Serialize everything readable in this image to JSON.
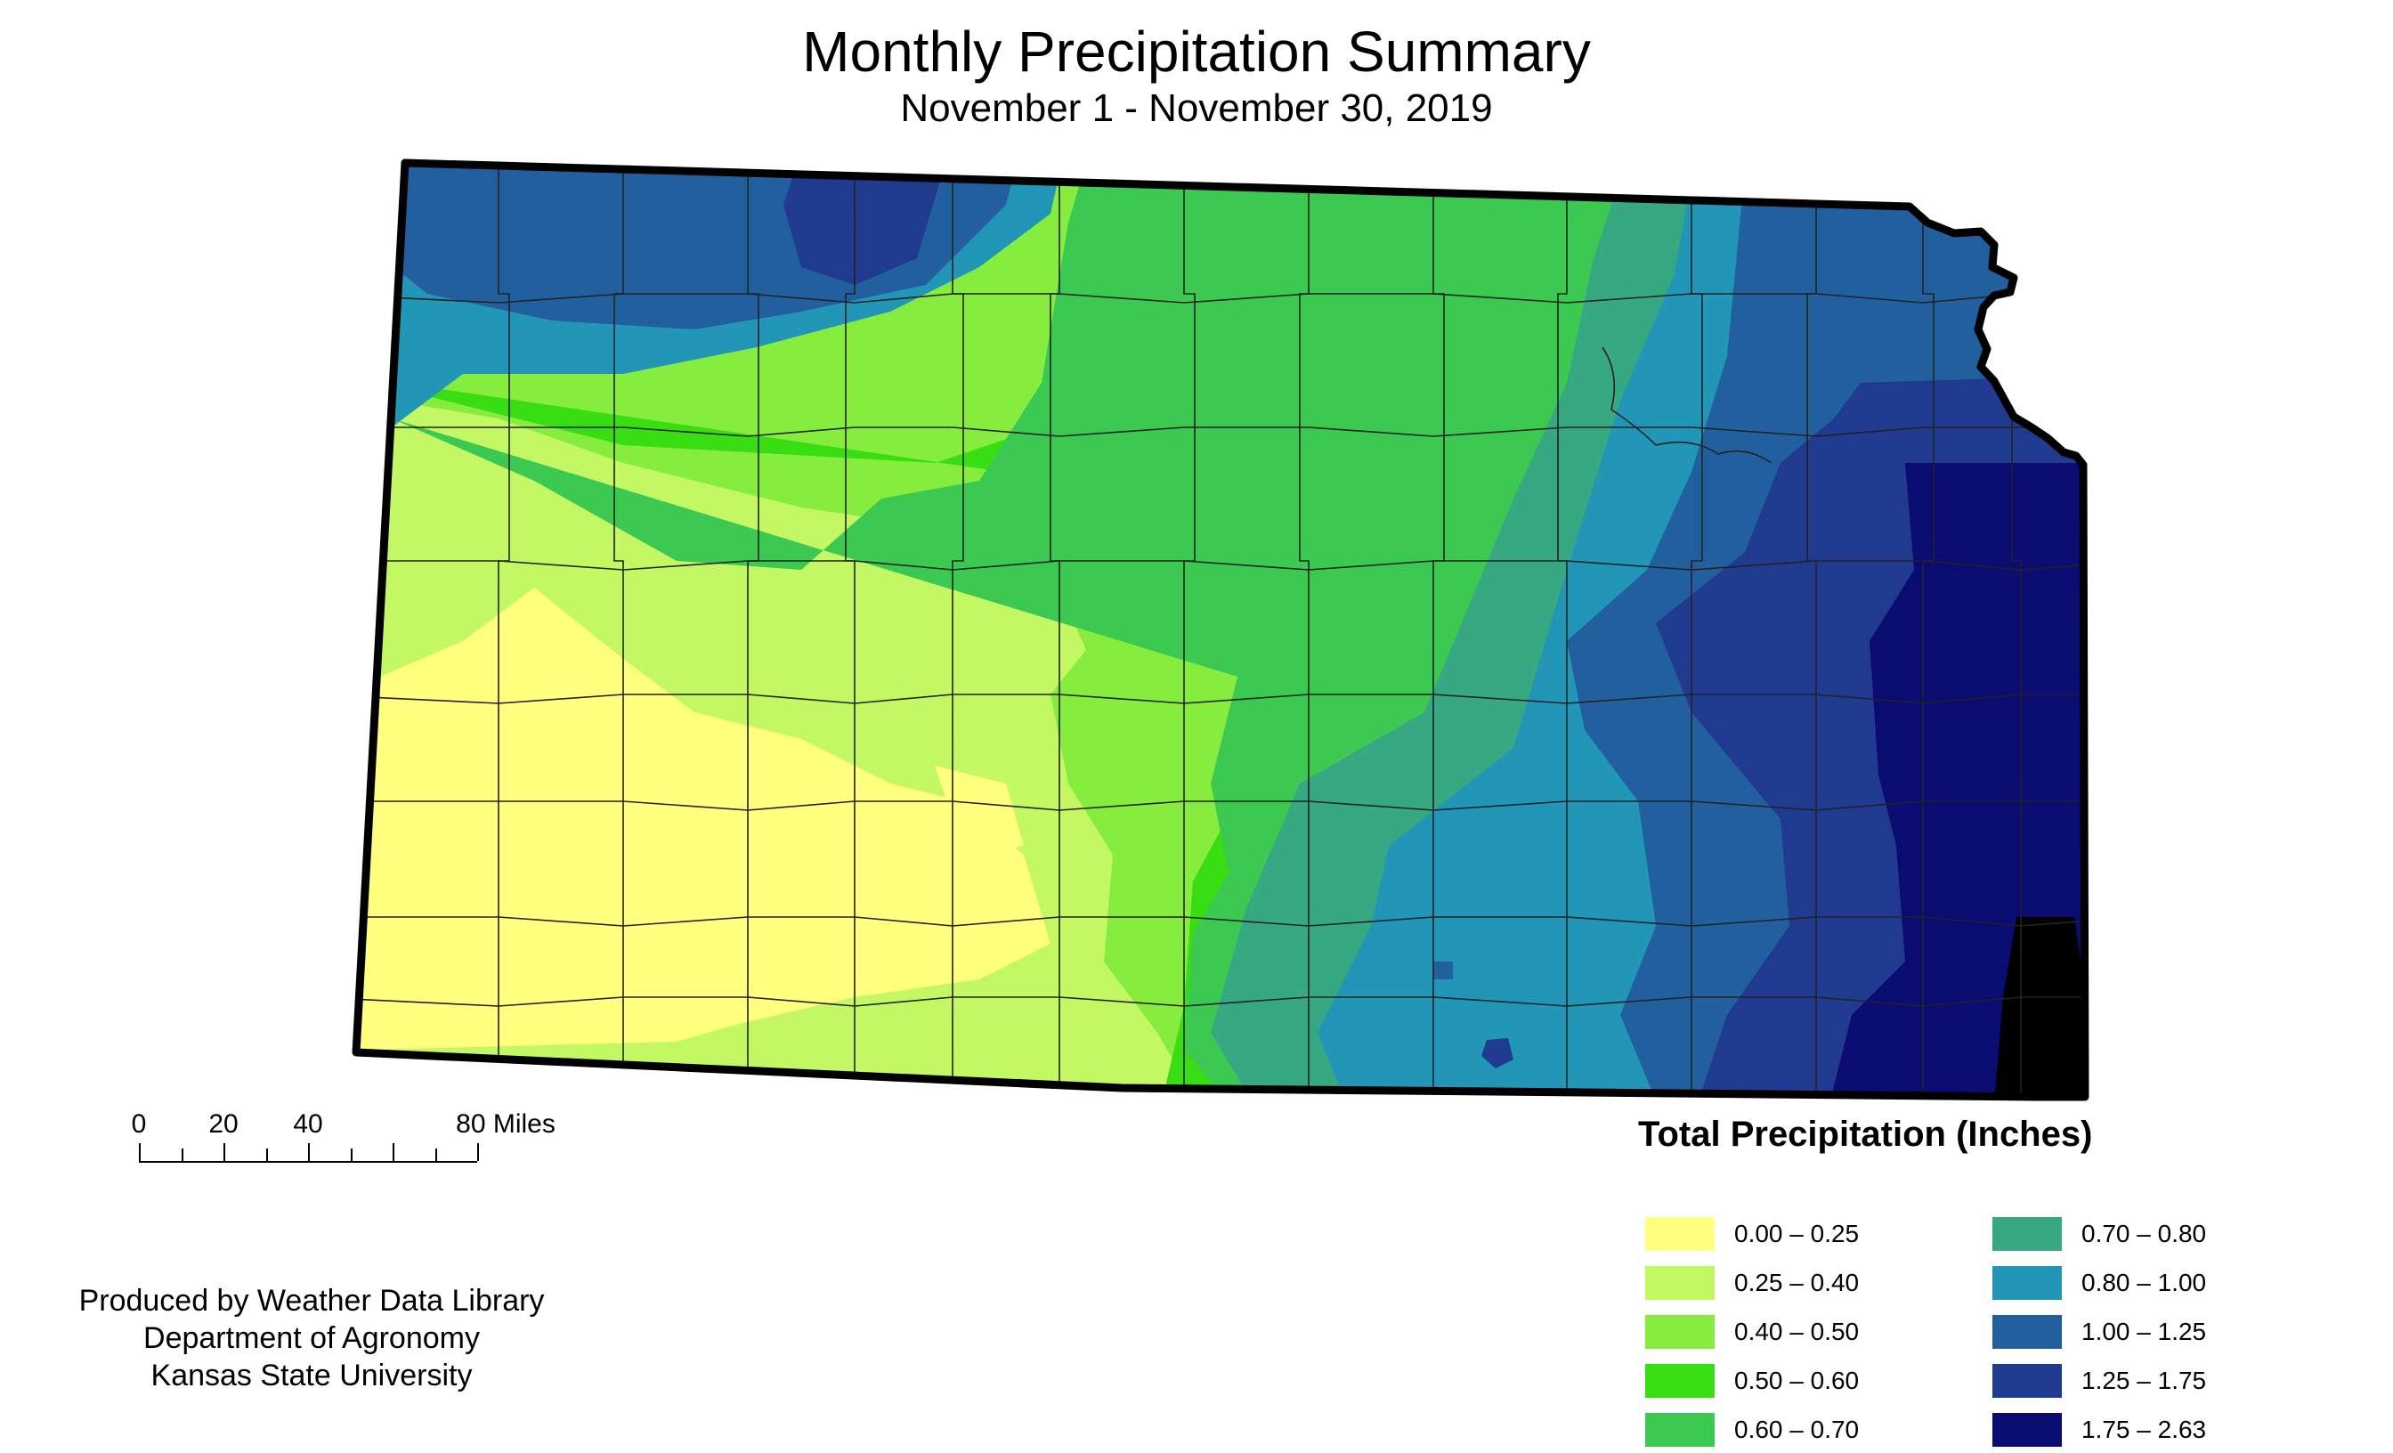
{
  "map": {
    "title": "Monthly Precipitation Summary",
    "subtitle": "November 1 - November 30, 2019",
    "state_outline_color": "#000000",
    "county_line_color": "#222222"
  },
  "scalebar": {
    "labels": [
      "0",
      "20",
      "40",
      "80 Miles"
    ],
    "values": [
      0,
      20,
      40,
      80
    ]
  },
  "credits": {
    "line1": "Produced by Weather Data Library",
    "line2": "Department of Agronomy",
    "line3": "Kansas State University"
  },
  "legend": {
    "title": "Total Precipitation (Inches)",
    "classes": [
      {
        "label": "0.00 – 0.25",
        "color": "#ffff80"
      },
      {
        "label": "0.25 – 0.40",
        "color": "#c3f764"
      },
      {
        "label": "0.40 – 0.50",
        "color": "#86ec3e"
      },
      {
        "label": "0.50 – 0.60",
        "color": "#38de12"
      },
      {
        "label": "0.60 – 0.70",
        "color": "#3cc952"
      },
      {
        "label": "0.70 – 0.80",
        "color": "#38a883"
      },
      {
        "label": "0.80 – 1.00",
        "color": "#2296b6"
      },
      {
        "label": "1.00 – 1.25",
        "color": "#225f9e"
      },
      {
        "label": "1.25 – 1.75",
        "color": "#1f3a8e"
      },
      {
        "label": "1.75 – 2.63",
        "color": "#0b0c72"
      }
    ]
  }
}
